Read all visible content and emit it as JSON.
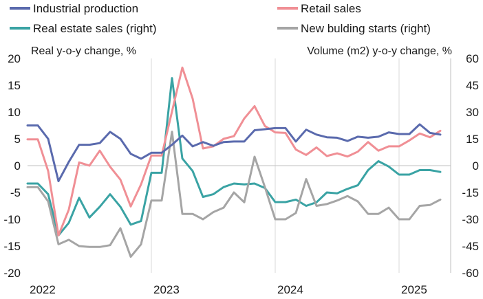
{
  "chart_data": {
    "type": "line",
    "y_left_label": "Real y-o-y change, %",
    "y_right_label": "Volume (m2) y-o-y change, %",
    "y_left_range": [
      -20,
      20
    ],
    "y_left_ticks": [
      "20",
      "15",
      "10",
      "5",
      "0",
      "-5",
      "-10",
      "-15",
      "-20"
    ],
    "y_right_range": [
      -60,
      60
    ],
    "y_right_ticks": [
      "60",
      "45",
      "30",
      "15",
      "0",
      "-15",
      "-30",
      "-45",
      "-60"
    ],
    "x_labels": [
      {
        "label": "2022",
        "pos": 0
      },
      {
        "label": "2023",
        "pos": 12
      },
      {
        "label": "2024",
        "pos": 24
      },
      {
        "label": "2025",
        "pos": 36
      }
    ],
    "x_range": [
      0,
      41
    ],
    "legend_position": "top",
    "grid": "vertical",
    "series": [
      {
        "name": "Industrial production",
        "axis": "left",
        "color": "#5a6aad",
        "values": [
          7.5,
          7.5,
          5.0,
          -2.9,
          0.7,
          3.9,
          3.9,
          4.2,
          6.3,
          5.0,
          2.2,
          1.3,
          2.4,
          2.4,
          3.9,
          5.6,
          3.6,
          4.4,
          3.7,
          4.4,
          4.5,
          4.5,
          6.6,
          6.8,
          7.0,
          7.0,
          4.5,
          6.7,
          5.8,
          5.3,
          5.2,
          4.6,
          5.4,
          5.2,
          5.4,
          6.2,
          5.9,
          5.9,
          7.7,
          6.1,
          5.8
        ]
      },
      {
        "name": "Retail sales",
        "axis": "left",
        "color": "#f08f95",
        "values": [
          4.9,
          4.9,
          -1.0,
          -13.0,
          -8.2,
          0.6,
          0.0,
          2.8,
          -0.2,
          -2.6,
          -7.6,
          -3.5,
          1.9,
          1.9,
          10.1,
          18.3,
          12.5,
          3.2,
          3.6,
          5.0,
          5.5,
          8.8,
          11.1,
          7.4,
          6.2,
          6.1,
          3.0,
          2.0,
          3.4,
          1.8,
          2.3,
          1.7,
          2.6,
          4.4,
          2.8,
          3.6,
          3.6,
          4.7,
          6.0,
          5.3,
          6.5
        ]
      },
      {
        "name": "Real estate sales (right)",
        "axis": "right",
        "color": "#3aa3a4",
        "values": [
          -10,
          -10,
          -16,
          -39,
          -32,
          -18,
          -29,
          -23,
          -16,
          -23,
          -33,
          -31,
          -4,
          -4,
          49,
          4,
          -3,
          -17.5,
          -16,
          -12,
          -10,
          -10.5,
          -10,
          -12.5,
          -20.4,
          -20.4,
          -19,
          -22.5,
          -20.5,
          -15,
          -15.5,
          -13,
          -11,
          -2.5,
          2.5,
          -0.5,
          -5,
          -5,
          -2.5,
          -2.5,
          -3.5
        ]
      },
      {
        "name": "New bulding starts (right)",
        "axis": "right",
        "color": "#a5a5a5",
        "values": [
          -12,
          -12,
          -20,
          -44,
          -41.5,
          -45,
          -45.5,
          -45.5,
          -44.5,
          -35,
          -51,
          -44,
          -19.5,
          -19.5,
          19,
          -27,
          -27,
          -30,
          -26,
          -23.5,
          -15,
          -20.5,
          5,
          -12,
          -30,
          -30,
          -26.5,
          -7.5,
          -22.5,
          -21.5,
          -19.5,
          -17,
          -20,
          -27,
          -27,
          -23.5,
          -30,
          -30,
          -22.5,
          -22,
          -19
        ]
      }
    ]
  }
}
